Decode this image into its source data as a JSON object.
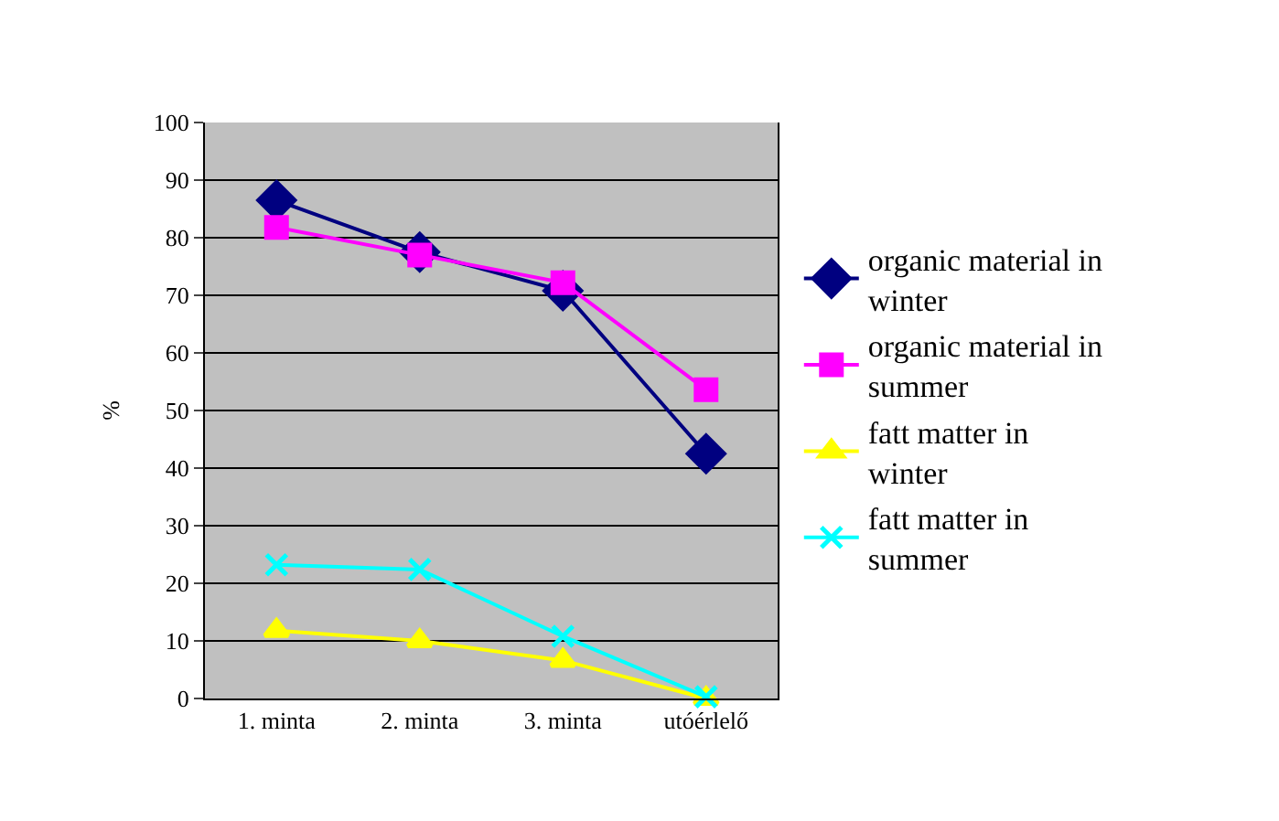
{
  "chart_data": {
    "type": "line",
    "ylabel": "%",
    "categories": [
      "1. minta",
      "2. minta",
      "3. minta",
      "utóérlelő"
    ],
    "ylim": [
      0,
      100
    ],
    "yticks": [
      0,
      10,
      20,
      30,
      40,
      50,
      60,
      70,
      80,
      90,
      100
    ],
    "grid": "y",
    "legend": "right",
    "series": [
      {
        "name": "organic material in winter",
        "color": "#000080",
        "marker": "diamond",
        "values": [
          86.5,
          77.5,
          70.8,
          42.5
        ]
      },
      {
        "name": "organic material in summer",
        "color": "#ff00ff",
        "marker": "square",
        "values": [
          81.8,
          77,
          72.2,
          53.6
        ]
      },
      {
        "name": "fatt matter in winter",
        "color": "#ffff00",
        "marker": "triangle",
        "values": [
          11.8,
          10,
          6.6,
          0
        ]
      },
      {
        "name": "fatt matter in summer",
        "color": "#00ffff",
        "marker": "cross",
        "values": [
          23.2,
          22.4,
          10.8,
          0.3
        ]
      }
    ]
  }
}
